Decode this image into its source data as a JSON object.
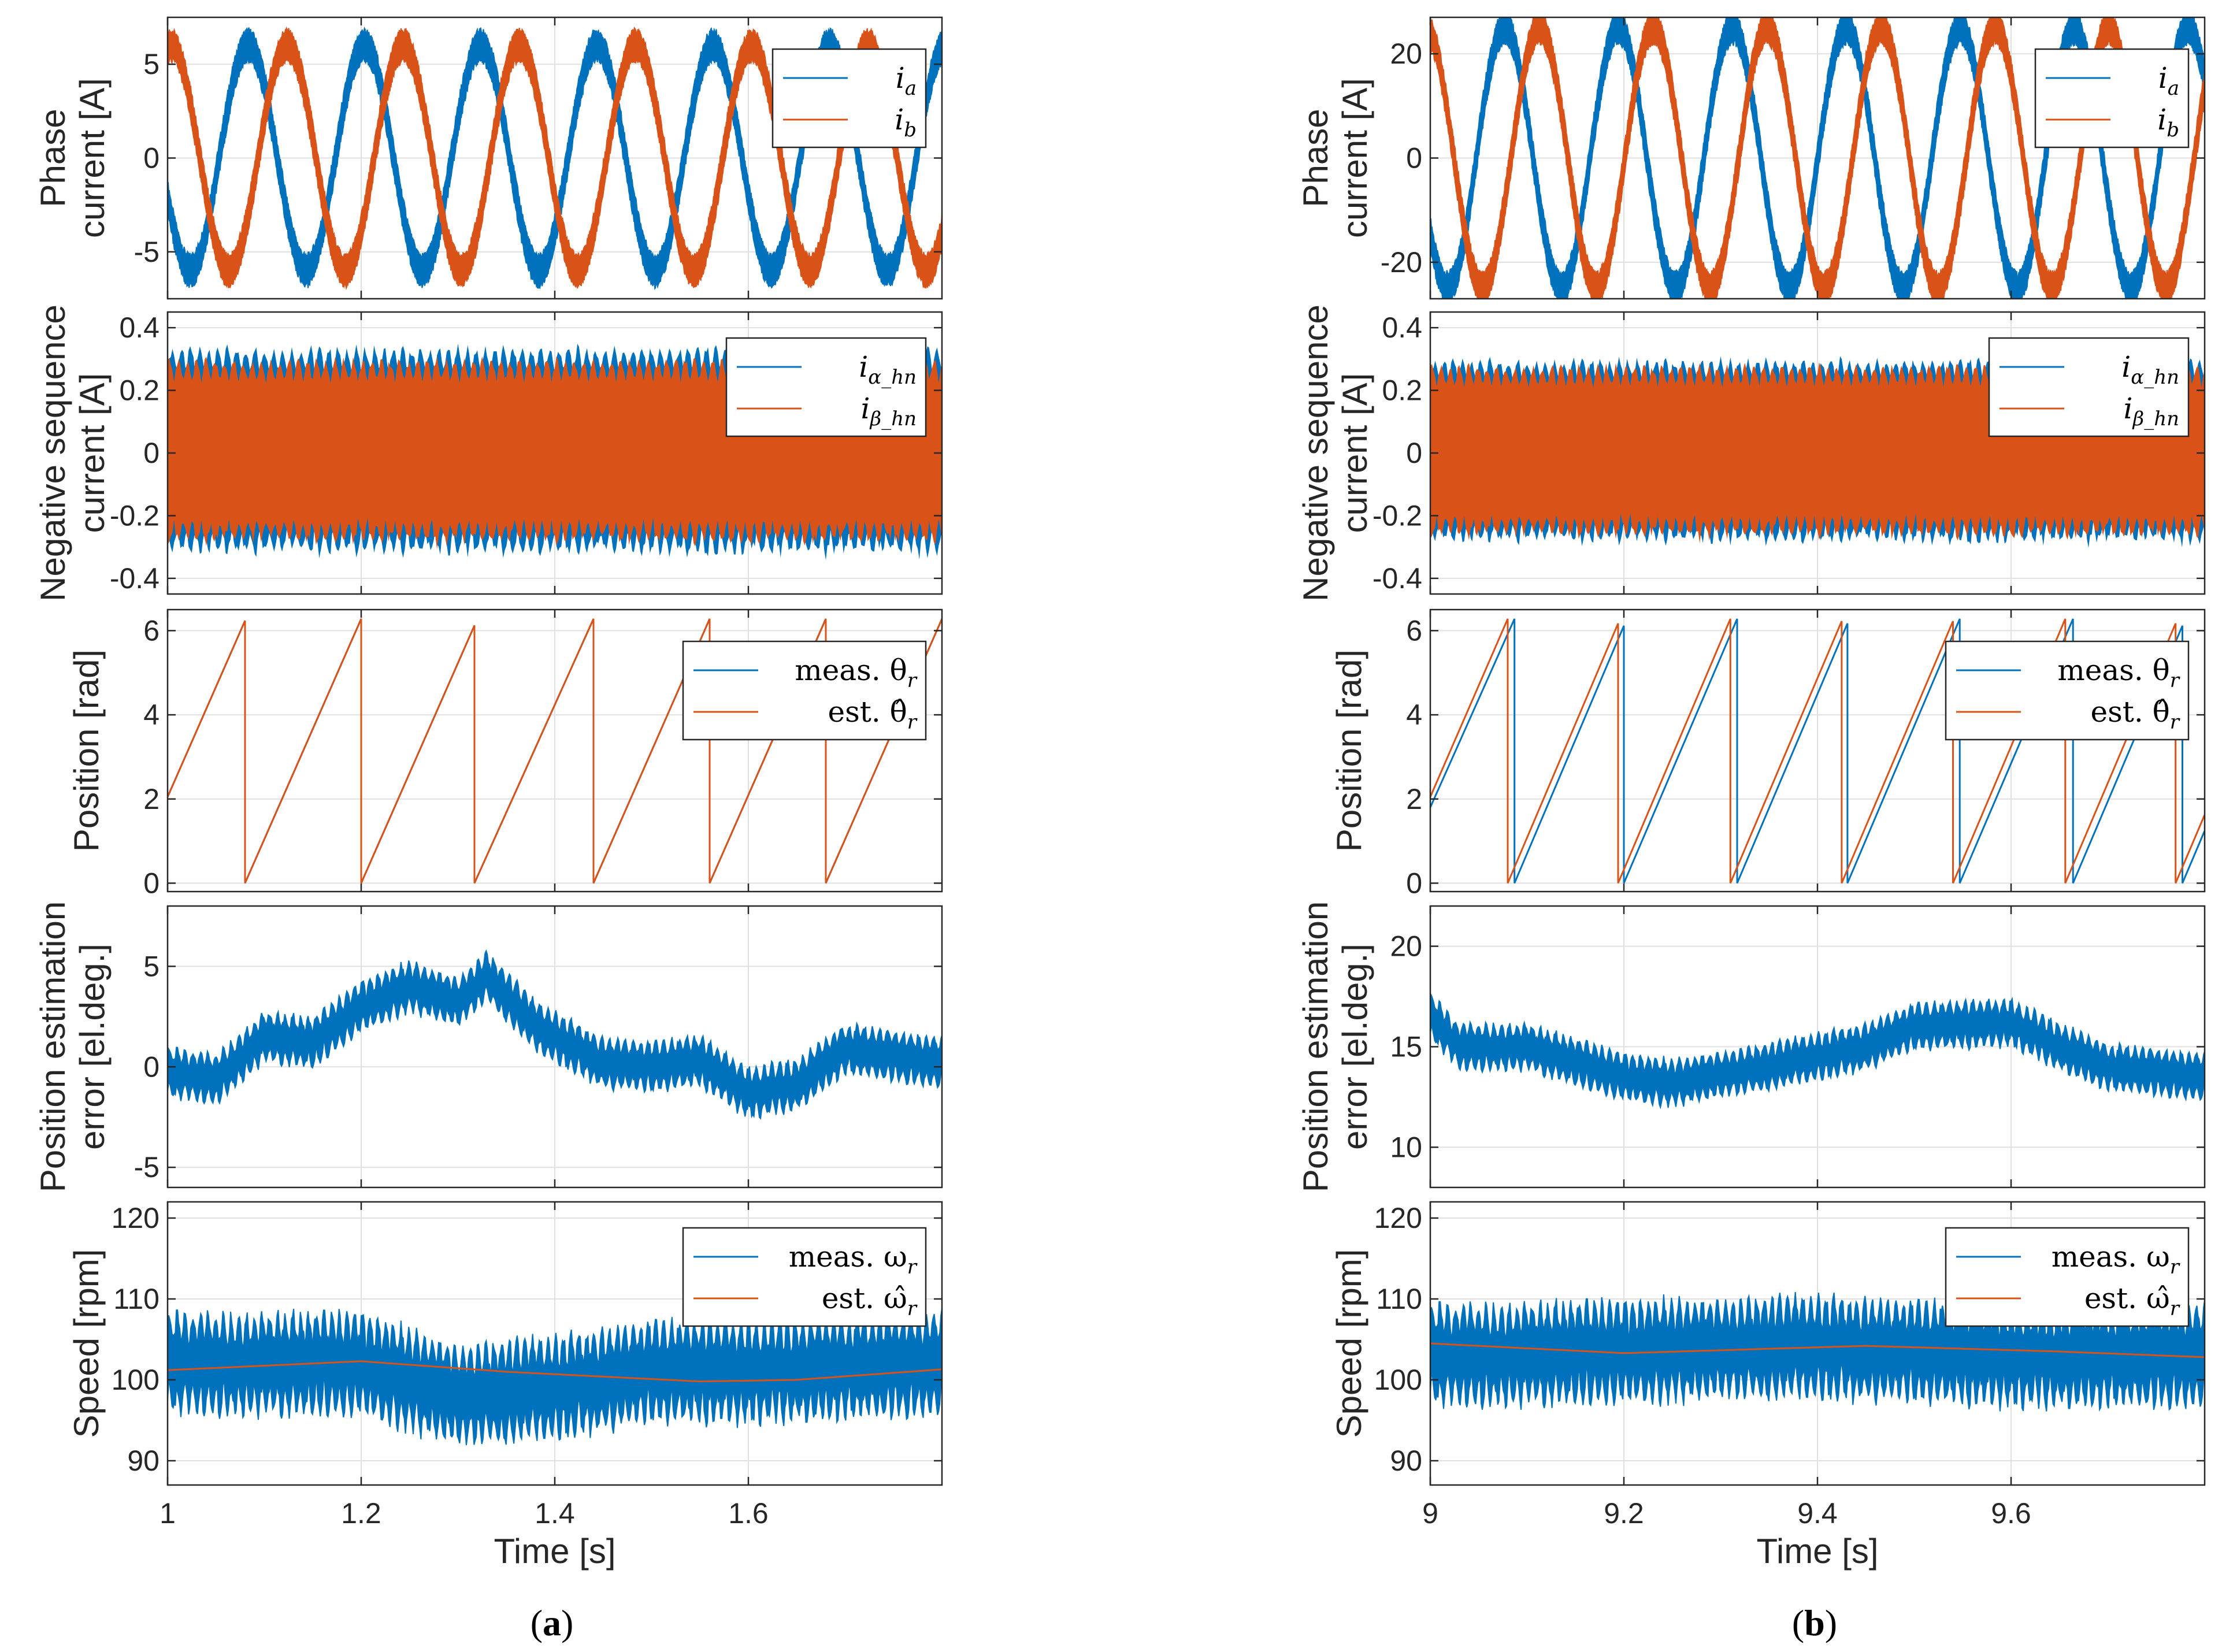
{
  "figure": {
    "panel_labels": [
      "(a)",
      "(b)"
    ],
    "label_bold_letters": [
      "a",
      "b"
    ]
  },
  "colors": {
    "blue": "#0072BD",
    "orange": "#D95319",
    "grid": "#e0e0e0",
    "axis": "#262626"
  },
  "chart_data": [
    {
      "id": "a1",
      "type": "line",
      "ylabel": [
        "Phase",
        "current [A]"
      ],
      "xlim": [
        1,
        1.8
      ],
      "ylim": [
        -7.5,
        7.5
      ],
      "yticks": [
        -5,
        0,
        5
      ],
      "ytick_labels": [
        "-5",
        "0",
        "5"
      ],
      "xticks": [
        1,
        1.2,
        1.4,
        1.6
      ],
      "grid": true,
      "legend_location": "top-right",
      "series": [
        {
          "name": "i_a",
          "legend_main": "i",
          "legend_sub": "a",
          "color": "#0072BD",
          "model": "sine",
          "amplitude": 6.0,
          "freq_hz": 8.33,
          "phase_deg": 200,
          "ripple": 1.2
        },
        {
          "name": "i_b",
          "legend_main": "i",
          "legend_sub": "b",
          "color": "#D95319",
          "model": "sine",
          "amplitude": 6.0,
          "freq_hz": 8.33,
          "phase_deg": 80,
          "ripple": 1.2
        }
      ]
    },
    {
      "id": "a2",
      "type": "line",
      "ylabel": [
        "Negative sequence",
        "current [A]"
      ],
      "xlim": [
        1,
        1.8
      ],
      "ylim": [
        -0.45,
        0.45
      ],
      "yticks": [
        -0.4,
        -0.2,
        0,
        0.2,
        0.4
      ],
      "ytick_labels": [
        "-0.4",
        "-0.2",
        "0",
        "0.2",
        "0.4"
      ],
      "xticks": [
        1,
        1.2,
        1.4,
        1.6
      ],
      "grid": true,
      "legend_location": "top-right",
      "series": [
        {
          "name": "i_α_hn",
          "legend_main": "i",
          "legend_sub": "α_hn",
          "color": "#0072BD",
          "model": "band",
          "amplitude": 0.35,
          "inner": 0.12
        },
        {
          "name": "i_β_hn",
          "legend_main": "i",
          "legend_sub": "β_hn",
          "color": "#D95319",
          "model": "band",
          "amplitude": 0.31,
          "inner": 0.2
        }
      ]
    },
    {
      "id": "a3",
      "type": "line",
      "ylabel": [
        "Position [rad]"
      ],
      "xlim": [
        1,
        1.8
      ],
      "ylim": [
        -0.2,
        6.5
      ],
      "yticks": [
        0,
        2,
        4,
        6
      ],
      "ytick_labels": [
        "0",
        "2",
        "4",
        "6"
      ],
      "xticks": [
        1,
        1.2,
        1.4,
        1.6
      ],
      "grid": true,
      "legend_location": "top-right",
      "series": [
        {
          "name": "meas. θ_r",
          "legend_main": "meas.  θ",
          "legend_sub": "r",
          "color": "#0072BD",
          "model": "saw",
          "resets": [
            1.08,
            1.2,
            1.317,
            1.44,
            1.56,
            1.68
          ],
          "start_value": 2.05,
          "period": 0.12,
          "max": 6.28
        },
        {
          "name": "est. θ̂_r",
          "legend_main": "est.  θ̂",
          "legend_sub": "r",
          "color": "#D95319",
          "model": "saw",
          "resets": [
            1.08,
            1.2,
            1.317,
            1.44,
            1.56,
            1.68
          ],
          "start_value": 2.05,
          "period": 0.12,
          "max": 6.28
        }
      ]
    },
    {
      "id": "a4",
      "type": "line",
      "ylabel": [
        "Position estimation",
        "error [el.deg.]"
      ],
      "xlim": [
        1,
        1.8
      ],
      "ylim": [
        -6,
        8
      ],
      "yticks": [
        -5,
        0,
        5
      ],
      "ytick_labels": [
        "-5",
        "0",
        "5"
      ],
      "xticks": [
        1,
        1.2,
        1.4,
        1.6
      ],
      "grid": true,
      "legend_location": "none",
      "series": [
        {
          "name": "error",
          "color": "#0072BD",
          "model": "trend",
          "x": [
            1,
            1.05,
            1.1,
            1.15,
            1.2,
            1.25,
            1.3,
            1.33,
            1.38,
            1.45,
            1.5,
            1.55,
            1.6,
            1.65,
            1.7,
            1.8
          ],
          "y": [
            -0.3,
            -0.6,
            1.5,
            1.2,
            3.0,
            4.0,
            3.2,
            4.5,
            2.0,
            0.2,
            0.0,
            0.3,
            -1.3,
            -0.9,
            0.9,
            0.2
          ],
          "ripple": 1.4
        }
      ]
    },
    {
      "id": "a5",
      "type": "line",
      "ylabel": [
        "Speed [rpm]"
      ],
      "xlabel": "Time [s]",
      "xlim": [
        1,
        1.8
      ],
      "ylim": [
        87,
        122
      ],
      "yticks": [
        90,
        100,
        110,
        120
      ],
      "ytick_labels": [
        "90",
        "100",
        "110",
        "120"
      ],
      "xticks": [
        1,
        1.2,
        1.4,
        1.6
      ],
      "xtick_labels": [
        "1",
        "1.2",
        "1.4",
        "1.6"
      ],
      "grid": true,
      "legend_location": "top-right",
      "series": [
        {
          "name": "meas. ω_r",
          "legend_main": "meas.  ω",
          "legend_sub": "r",
          "color": "#0072BD",
          "model": "trend",
          "x": [
            1,
            1.2,
            1.3,
            1.4,
            1.5,
            1.6,
            1.8
          ],
          "y": [
            102,
            102,
            98,
            99,
            101,
            101,
            102
          ],
          "ripple": 7
        },
        {
          "name": "est. ω̂_r",
          "legend_main": "est.  ω̂",
          "legend_sub": "r",
          "color": "#D95319",
          "model": "trend",
          "x": [
            1,
            1.2,
            1.35,
            1.55,
            1.65,
            1.8
          ],
          "y": [
            101.2,
            102.3,
            101.0,
            99.8,
            100.0,
            101.3
          ],
          "ripple": 0
        }
      ]
    },
    {
      "id": "b1",
      "type": "line",
      "ylabel": [
        "Phase",
        "current [A]"
      ],
      "xlim": [
        9,
        9.8
      ],
      "ylim": [
        -27,
        27
      ],
      "yticks": [
        -20,
        0,
        20
      ],
      "ytick_labels": [
        "-20",
        "0",
        "20"
      ],
      "xticks": [
        9,
        9.2,
        9.4,
        9.6
      ],
      "grid": true,
      "legend_location": "top-right",
      "series": [
        {
          "name": "i_a",
          "legend_main": "i",
          "legend_sub": "a",
          "color": "#0072BD",
          "model": "sine",
          "amplitude": 25,
          "freq_hz": 8.5,
          "phase_deg": 215,
          "ripple": 1.2
        },
        {
          "name": "i_b",
          "legend_main": "i",
          "legend_sub": "b",
          "color": "#D95319",
          "model": "sine",
          "amplitude": 25,
          "freq_hz": 8.5,
          "phase_deg": 105,
          "ripple": 1.2
        }
      ]
    },
    {
      "id": "b2",
      "type": "line",
      "ylabel": [
        "Negative sequence",
        "current [A]"
      ],
      "xlim": [
        9,
        9.8
      ],
      "ylim": [
        -0.45,
        0.45
      ],
      "yticks": [
        -0.4,
        -0.2,
        0,
        0.2,
        0.4
      ],
      "ytick_labels": [
        "-0.4",
        "-0.2",
        "0",
        "0.2",
        "0.4"
      ],
      "xticks": [
        9,
        9.2,
        9.4,
        9.6
      ],
      "grid": true,
      "legend_location": "top-right",
      "series": [
        {
          "name": "i_α_hn",
          "legend_main": "i",
          "legend_sub": "α_hn",
          "color": "#0072BD",
          "model": "band",
          "amplitude": 0.31,
          "inner": 0.15
        },
        {
          "name": "i_β_hn",
          "legend_main": "i",
          "legend_sub": "β_hn",
          "color": "#D95319",
          "model": "band",
          "amplitude": 0.29,
          "inner": 0.28
        }
      ]
    },
    {
      "id": "b3",
      "type": "line",
      "ylabel": [
        "Position [rad]"
      ],
      "xlim": [
        9,
        9.8
      ],
      "ylim": [
        -0.2,
        6.5
      ],
      "yticks": [
        0,
        2,
        4,
        6
      ],
      "ytick_labels": [
        "0",
        "2",
        "4",
        "6"
      ],
      "xticks": [
        9,
        9.2,
        9.4,
        9.6
      ],
      "grid": true,
      "legend_location": "top-right",
      "series": [
        {
          "name": "meas. θ_r",
          "legend_main": "meas.  θ",
          "legend_sub": "r",
          "color": "#0072BD",
          "model": "saw",
          "resets": [
            9.087,
            9.2,
            9.317,
            9.431,
            9.547,
            9.664,
            9.777
          ],
          "start_value": 1.8,
          "period": 0.116,
          "max": 6.28
        },
        {
          "name": "est. θ̂_r",
          "legend_main": "est.  θ̂",
          "legend_sub": "r",
          "color": "#D95319",
          "model": "saw",
          "resets": [
            9.08,
            9.194,
            9.31,
            9.425,
            9.54,
            9.656,
            9.77
          ],
          "start_value": 2.05,
          "period": 0.116,
          "max": 6.28
        }
      ]
    },
    {
      "id": "b4",
      "type": "line",
      "ylabel": [
        "Position estimation",
        "error [el.deg.]"
      ],
      "xlim": [
        9,
        9.8
      ],
      "ylim": [
        8,
        22
      ],
      "yticks": [
        10,
        15,
        20
      ],
      "ytick_labels": [
        "10",
        "15",
        "20"
      ],
      "xticks": [
        9,
        9.2,
        9.4,
        9.6
      ],
      "grid": true,
      "legend_location": "none",
      "series": [
        {
          "name": "error",
          "color": "#0072BD",
          "model": "trend",
          "x": [
            9,
            9.03,
            9.1,
            9.2,
            9.25,
            9.35,
            9.45,
            9.5,
            9.6,
            9.65,
            9.7,
            9.8
          ],
          "y": [
            16.5,
            15.0,
            15.0,
            13.5,
            13.2,
            14.0,
            15.0,
            16.0,
            16.2,
            15.0,
            14.0,
            13.5
          ],
          "ripple": 1.3
        }
      ]
    },
    {
      "id": "b5",
      "type": "line",
      "ylabel": [
        "Speed [rpm]"
      ],
      "xlabel": "Time [s]",
      "xlim": [
        9,
        9.8
      ],
      "ylim": [
        87,
        122
      ],
      "yticks": [
        90,
        100,
        110,
        120
      ],
      "ytick_labels": [
        "90",
        "100",
        "110",
        "120"
      ],
      "xticks": [
        9,
        9.2,
        9.4,
        9.6
      ],
      "xtick_labels": [
        "9",
        "9.2",
        "9.4",
        "9.6"
      ],
      "grid": true,
      "legend_location": "top-right",
      "series": [
        {
          "name": "meas. ω_r",
          "legend_main": "meas.  ω",
          "legend_sub": "r",
          "color": "#0072BD",
          "model": "trend",
          "x": [
            9,
            9.2,
            9.4,
            9.6,
            9.8
          ],
          "y": [
            103,
            103.5,
            104,
            103,
            103
          ],
          "ripple": 7
        },
        {
          "name": "est. ω̂_r",
          "legend_main": "est.  ω̂",
          "legend_sub": "r",
          "color": "#D95319",
          "model": "trend",
          "x": [
            9,
            9.2,
            9.45,
            9.65,
            9.8
          ],
          "y": [
            104.5,
            103.3,
            104.2,
            103.5,
            102.8
          ],
          "ripple": 0
        }
      ]
    }
  ]
}
